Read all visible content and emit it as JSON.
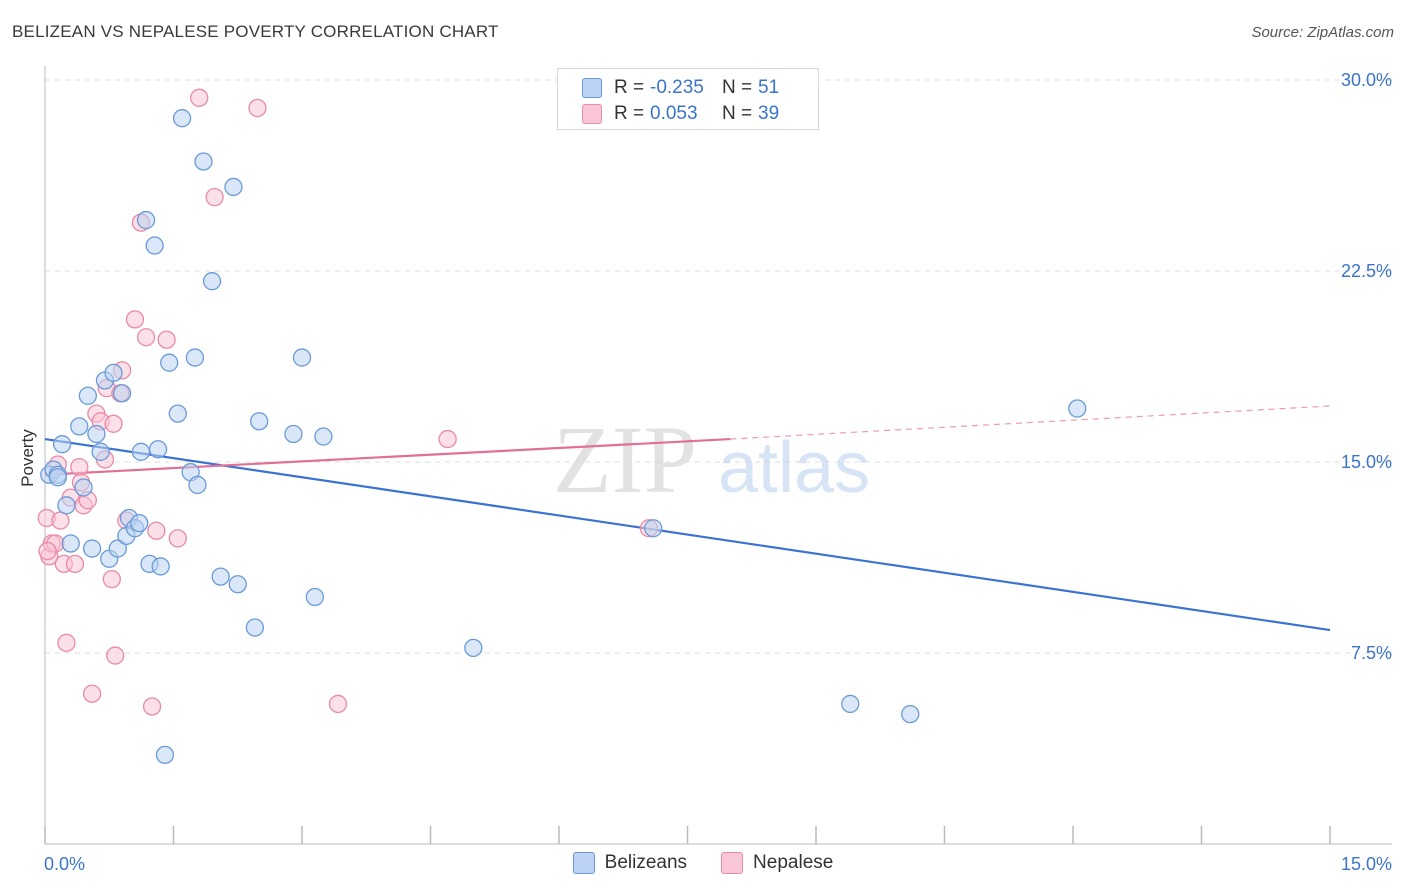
{
  "title": "BELIZEAN VS NEPALESE POVERTY CORRELATION CHART",
  "source": "Source: ZipAtlas.com",
  "watermark": {
    "zip": "ZIP",
    "atlas": "atlas"
  },
  "legend": {
    "rows": [
      {
        "r_label": "R =",
        "r_value": "-0.235",
        "n_label": "N =",
        "n_value": "51",
        "fill": "#bcd3f3",
        "stroke": "#6a9ad8"
      },
      {
        "r_label": "R =",
        "r_value": "0.053",
        "n_label": "N =",
        "n_value": "39",
        "fill": "#f9c6d6",
        "stroke": "#e88aa8"
      }
    ]
  },
  "bottom_legend": [
    {
      "label": "Belizeans",
      "fill": "#bcd3f3",
      "stroke": "#6a9ad8"
    },
    {
      "label": "Nepalese",
      "fill": "#f9c6d6",
      "stroke": "#e88aa8"
    }
  ],
  "chart_data": {
    "type": "scatter",
    "title": "BELIZEAN VS NEPALESE POVERTY CORRELATION CHART",
    "xlabel": "",
    "ylabel": "Poverty",
    "xlim": [
      0,
      15
    ],
    "ylim": [
      0,
      30
    ],
    "x_tick_labels": [
      "0.0%",
      "15.0%"
    ],
    "y_ticks": [
      7.5,
      15,
      22.5,
      30
    ],
    "y_tick_labels": [
      "7.5%",
      "15.0%",
      "22.5%",
      "30.0%"
    ],
    "grid": true,
    "series": [
      {
        "name": "Belizeans",
        "color": "#6a9ad8",
        "fill": "#bcd3f3",
        "trend": {
          "x": [
            0,
            15
          ],
          "y": [
            15.9,
            8.4
          ],
          "color": "#3a74d0"
        },
        "points": [
          [
            0.05,
            14.5
          ],
          [
            0.1,
            14.7
          ],
          [
            0.15,
            14.5
          ],
          [
            0.2,
            15.7
          ],
          [
            0.25,
            13.3
          ],
          [
            0.3,
            11.8
          ],
          [
            0.4,
            16.4
          ],
          [
            0.45,
            14.0
          ],
          [
            0.5,
            17.6
          ],
          [
            0.55,
            11.6
          ],
          [
            0.6,
            16.1
          ],
          [
            0.65,
            15.4
          ],
          [
            0.7,
            18.2
          ],
          [
            0.75,
            11.2
          ],
          [
            0.8,
            18.5
          ],
          [
            0.85,
            11.6
          ],
          [
            0.9,
            17.7
          ],
          [
            0.95,
            12.1
          ],
          [
            0.98,
            12.8
          ],
          [
            1.05,
            12.4
          ],
          [
            1.1,
            12.6
          ],
          [
            1.12,
            15.4
          ],
          [
            1.18,
            24.5
          ],
          [
            1.22,
            11.0
          ],
          [
            1.28,
            23.5
          ],
          [
            1.32,
            15.5
          ],
          [
            1.35,
            10.9
          ],
          [
            1.45,
            18.9
          ],
          [
            1.55,
            16.9
          ],
          [
            1.6,
            28.5
          ],
          [
            1.7,
            14.6
          ],
          [
            1.75,
            19.1
          ],
          [
            1.78,
            14.1
          ],
          [
            1.85,
            26.8
          ],
          [
            1.95,
            22.1
          ],
          [
            2.05,
            10.5
          ],
          [
            2.2,
            25.8
          ],
          [
            2.25,
            10.2
          ],
          [
            2.45,
            8.5
          ],
          [
            2.5,
            16.6
          ],
          [
            2.9,
            16.1
          ],
          [
            3.0,
            19.1
          ],
          [
            3.15,
            9.7
          ],
          [
            3.25,
            16.0
          ],
          [
            5.0,
            7.7
          ],
          [
            7.1,
            12.4
          ],
          [
            9.4,
            5.5
          ],
          [
            10.1,
            5.1
          ],
          [
            12.05,
            17.1
          ],
          [
            1.4,
            3.5
          ],
          [
            0.15,
            14.4
          ]
        ]
      },
      {
        "name": "Nepalese",
        "color": "#e88aa8",
        "fill": "#f9c6d6",
        "trend": {
          "x": [
            0,
            8.0
          ],
          "y": [
            14.5,
            15.9
          ],
          "dash_to": [
            15,
            17.2
          ],
          "color": "#e07096"
        },
        "points": [
          [
            0.02,
            12.8
          ],
          [
            0.05,
            11.3
          ],
          [
            0.08,
            11.8
          ],
          [
            0.12,
            11.8
          ],
          [
            0.15,
            14.9
          ],
          [
            0.18,
            12.7
          ],
          [
            0.22,
            11.0
          ],
          [
            0.25,
            7.9
          ],
          [
            0.3,
            13.6
          ],
          [
            0.35,
            11.0
          ],
          [
            0.4,
            14.8
          ],
          [
            0.42,
            14.2
          ],
          [
            0.45,
            13.3
          ],
          [
            0.5,
            13.5
          ],
          [
            0.55,
            5.9
          ],
          [
            0.6,
            16.9
          ],
          [
            0.65,
            16.6
          ],
          [
            0.7,
            15.1
          ],
          [
            0.72,
            17.9
          ],
          [
            0.78,
            10.4
          ],
          [
            0.8,
            16.5
          ],
          [
            0.82,
            7.4
          ],
          [
            0.88,
            17.7
          ],
          [
            0.9,
            18.6
          ],
          [
            0.95,
            12.7
          ],
          [
            1.05,
            20.6
          ],
          [
            1.12,
            24.4
          ],
          [
            1.18,
            19.9
          ],
          [
            1.25,
            5.4
          ],
          [
            1.3,
            12.3
          ],
          [
            1.42,
            19.8
          ],
          [
            1.55,
            12.0
          ],
          [
            1.8,
            29.3
          ],
          [
            1.98,
            25.4
          ],
          [
            2.48,
            28.9
          ],
          [
            3.42,
            5.5
          ],
          [
            4.7,
            15.9
          ],
          [
            7.05,
            12.4
          ],
          [
            0.03,
            11.5
          ]
        ]
      }
    ]
  }
}
